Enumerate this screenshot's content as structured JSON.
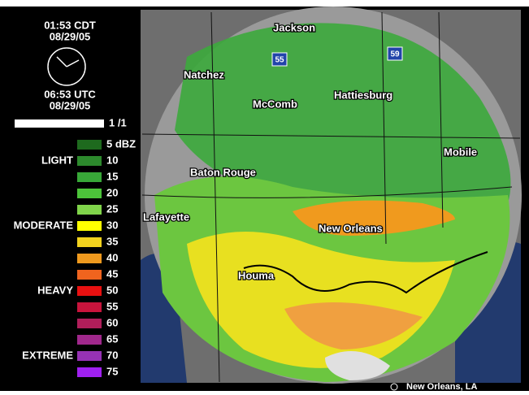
{
  "header": {
    "local_time": "01:53 CDT",
    "local_date": "08/29/05",
    "utc_time": "06:53 UTC",
    "utc_date": "08/29/05",
    "frame": "1 /1"
  },
  "legend": {
    "entries": [
      {
        "label": "5 dBZ",
        "color": "#1e6a1e"
      },
      {
        "label": "10",
        "color": "#2d8a2d"
      },
      {
        "label": "15",
        "color": "#38a838"
      },
      {
        "label": "20",
        "color": "#4cc43a"
      },
      {
        "label": "25",
        "color": "#80d44a"
      },
      {
        "label": "30",
        "color": "#ffff00"
      },
      {
        "label": "35",
        "color": "#f2d21e"
      },
      {
        "label": "40",
        "color": "#f09a1e"
      },
      {
        "label": "45",
        "color": "#f0641e"
      },
      {
        "label": "50",
        "color": "#e81010"
      },
      {
        "label": "55",
        "color": "#c8143c"
      },
      {
        "label": "60",
        "color": "#b01e5a"
      },
      {
        "label": "65",
        "color": "#a0288c"
      },
      {
        "label": "70",
        "color": "#9632b4"
      },
      {
        "label": "75",
        "color": "#a020f0"
      }
    ],
    "categories": [
      {
        "label": "LIGHT",
        "row": 1
      },
      {
        "label": "MODERATE",
        "row": 5
      },
      {
        "label": "HEAVY",
        "row": 9
      },
      {
        "label": "EXTREME",
        "row": 13
      }
    ]
  },
  "map": {
    "cities": [
      "Jackson",
      "Natchez",
      "McComb",
      "Hattiesburg",
      "Mobile",
      "Baton Rouge",
      "Lafayette",
      "New Orleans",
      "Houma"
    ],
    "highways": [
      "55",
      "59"
    ],
    "station": "New Orleans, LA"
  }
}
